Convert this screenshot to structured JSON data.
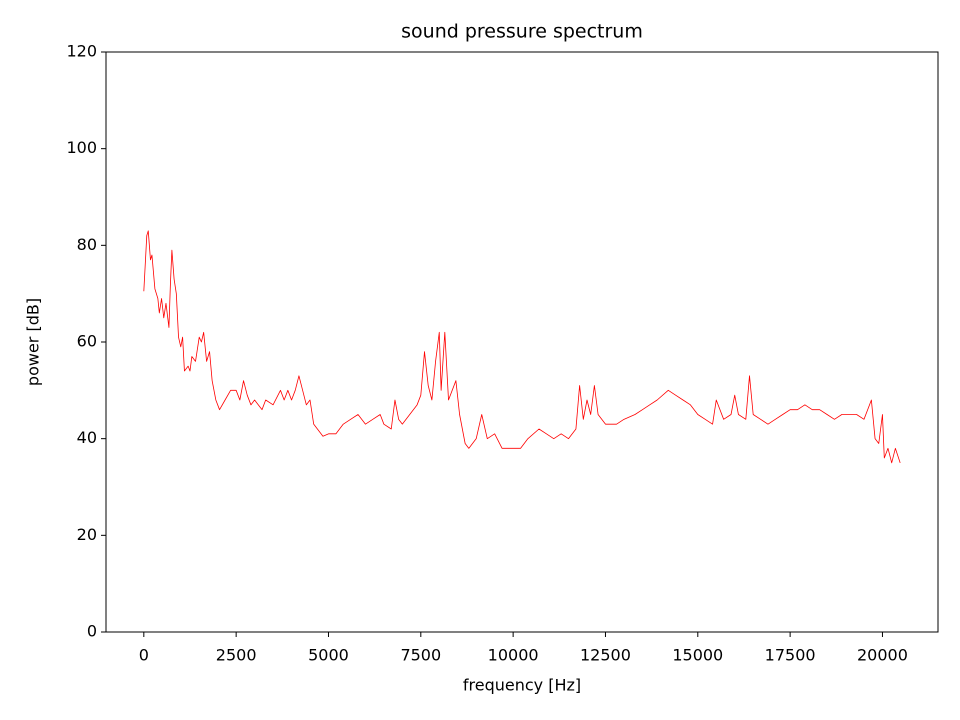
{
  "chart_data": {
    "type": "line",
    "title": "sound pressure spectrum",
    "xlabel": "frequency [Hz]",
    "ylabel": "power [dB]",
    "x": [
      0,
      80,
      120,
      180,
      220,
      300,
      380,
      420,
      480,
      540,
      600,
      680,
      720,
      760,
      820,
      880,
      940,
      1000,
      1050,
      1100,
      1200,
      1250,
      1300,
      1400,
      1500,
      1560,
      1620,
      1700,
      1780,
      1850,
      1950,
      2050,
      2200,
      2350,
      2500,
      2600,
      2700,
      2800,
      2900,
      3000,
      3100,
      3200,
      3300,
      3500,
      3700,
      3800,
      3900,
      4000,
      4100,
      4200,
      4300,
      4400,
      4500,
      4600,
      4700,
      4850,
      5000,
      5200,
      5400,
      5600,
      5800,
      6000,
      6200,
      6400,
      6500,
      6700,
      6800,
      6900,
      7000,
      7200,
      7400,
      7500,
      7600,
      7700,
      7800,
      7900,
      8000,
      8050,
      8150,
      8250,
      8350,
      8450,
      8550,
      8700,
      8800,
      9000,
      9150,
      9300,
      9500,
      9700,
      10000,
      10200,
      10400,
      10700,
      10900,
      11100,
      11300,
      11500,
      11700,
      11800,
      11900,
      12000,
      12100,
      12200,
      12300,
      12500,
      12800,
      13000,
      13300,
      13500,
      13700,
      13900,
      14200,
      14400,
      14600,
      14800,
      15000,
      15200,
      15400,
      15500,
      15700,
      15900,
      16000,
      16100,
      16300,
      16400,
      16500,
      16700,
      16900,
      17100,
      17300,
      17500,
      17700,
      17900,
      18100,
      18300,
      18500,
      18700,
      18900,
      19100,
      19300,
      19500,
      19700,
      19800,
      19900,
      20000,
      20050,
      20150,
      20250,
      20350,
      20480
    ],
    "series": [
      {
        "color": "#ff0000",
        "values": [
          70.5,
          82,
          83,
          77,
          78,
          71,
          69,
          66,
          69,
          65,
          68,
          63,
          72,
          79,
          73,
          70,
          61,
          59,
          61,
          54,
          55,
          54,
          57,
          56,
          61,
          60,
          62,
          56,
          58,
          52,
          48,
          46,
          48,
          50,
          50,
          48,
          52,
          49,
          47,
          48,
          47,
          46,
          48,
          47,
          50,
          48,
          50,
          48,
          50,
          53,
          50,
          47,
          48,
          43,
          42,
          40.5,
          41,
          41,
          43,
          44,
          45,
          43,
          44,
          45,
          43,
          42,
          48,
          44,
          43,
          45,
          47,
          49,
          58,
          51,
          48,
          56,
          62,
          50,
          62,
          48,
          50,
          52,
          45,
          39,
          38,
          40,
          45,
          40,
          41,
          38,
          38,
          38,
          40,
          42,
          41,
          40,
          41,
          40,
          42,
          51,
          44,
          48,
          45,
          51,
          45,
          43,
          43,
          44,
          45,
          46,
          47,
          48,
          50,
          49,
          48,
          47,
          45,
          44,
          43,
          48,
          44,
          45,
          49,
          45,
          44,
          53,
          45,
          44,
          43,
          44,
          45,
          46,
          46,
          47,
          46,
          46,
          45,
          44,
          45,
          45,
          45,
          44,
          48,
          40,
          39,
          45,
          36,
          38,
          35,
          38,
          35
        ]
      }
    ],
    "xlim": [
      -1024,
      21504
    ],
    "ylim": [
      0,
      120
    ],
    "xticks": [
      0,
      2500,
      5000,
      7500,
      10000,
      12500,
      15000,
      17500,
      20000
    ],
    "yticks": [
      0,
      20,
      40,
      60,
      80,
      100,
      120
    ]
  }
}
